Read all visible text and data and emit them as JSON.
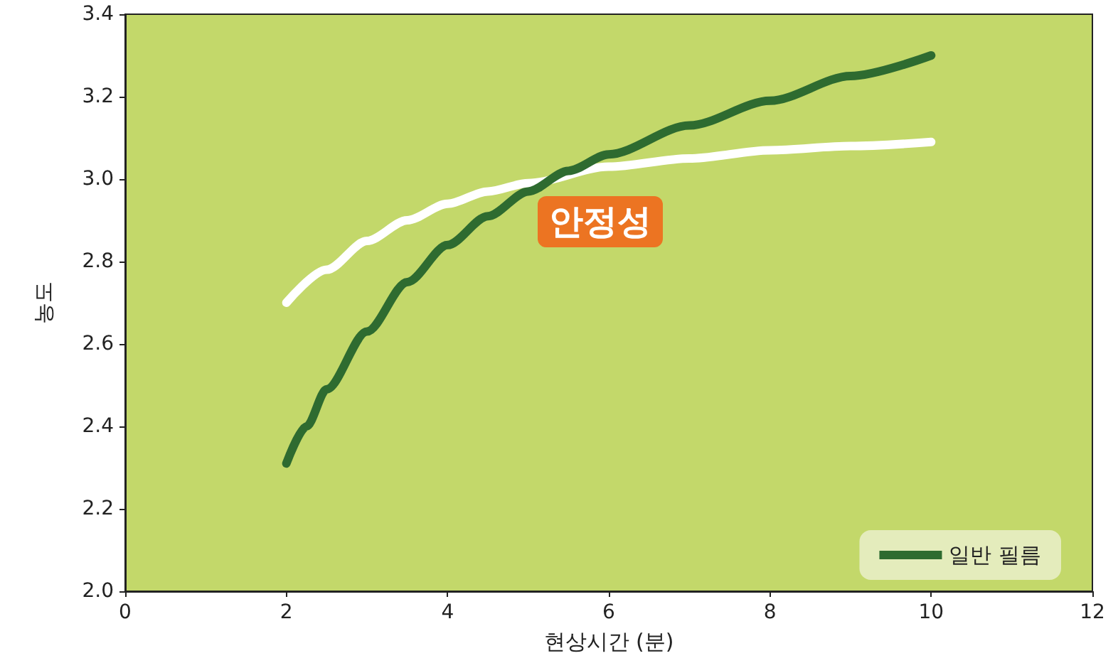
{
  "chart_data": {
    "type": "line",
    "xlabel": "현상시간 (분)",
    "ylabel": "농도",
    "xlim": [
      0,
      12
    ],
    "xticks": [
      0,
      2,
      4,
      6,
      8,
      10,
      12
    ],
    "ylim": [
      2.0,
      3.4
    ],
    "yticks": [
      {
        "value": 2.0,
        "label": "2.0"
      },
      {
        "value": 2.2,
        "label": "2.2"
      },
      {
        "value": 2.4,
        "label": "2.4"
      },
      {
        "value": 2.6,
        "label": "2.6"
      },
      {
        "value": 2.8,
        "label": "2.8"
      },
      {
        "value": 3.0,
        "label": "3.0"
      },
      {
        "value": 3.2,
        "label": "3.2"
      },
      {
        "value": 3.4,
        "label": "3.4"
      }
    ],
    "series": [
      {
        "color": "#ffffff",
        "x": [
          2,
          2.5,
          3,
          3.5,
          4,
          4.5,
          5,
          6,
          7,
          8,
          9,
          10
        ],
        "values": [
          2.7,
          2.78,
          2.85,
          2.9,
          2.94,
          2.97,
          2.99,
          3.03,
          3.05,
          3.07,
          3.08,
          3.09
        ]
      },
      {
        "name": "일반 필름",
        "color": "#2e6b30",
        "x": [
          2,
          2.25,
          2.5,
          3,
          3.5,
          4,
          4.5,
          5,
          5.5,
          6,
          7,
          8,
          9,
          10
        ],
        "values": [
          2.31,
          2.4,
          2.49,
          2.63,
          2.75,
          2.84,
          2.91,
          2.97,
          3.02,
          3.06,
          3.13,
          3.19,
          3.25,
          3.3
        ]
      }
    ],
    "annotations": [
      "안정성"
    ],
    "grid": false,
    "legend": "bottom right",
    "marker": "none",
    "line_style": "solid"
  }
}
